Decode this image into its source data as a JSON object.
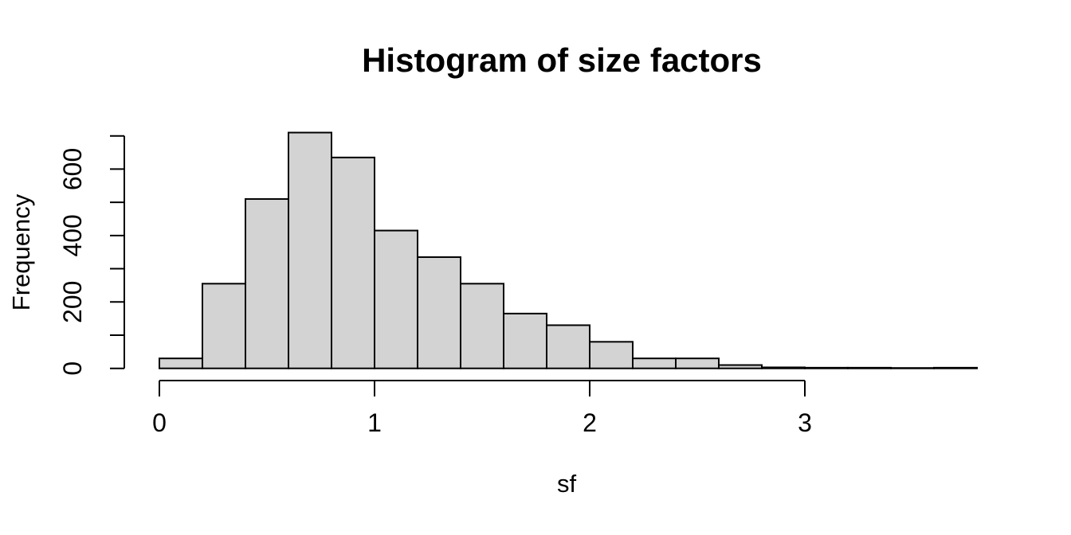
{
  "page": {
    "background": "#ffffff"
  },
  "chart_data": {
    "type": "bar",
    "subtype": "histogram",
    "title": "Histogram of size factors",
    "xlabel": "sf",
    "ylabel": "Frequency",
    "bins": {
      "start": 0.0,
      "width": 0.2
    },
    "frequencies": [
      30,
      255,
      510,
      710,
      635,
      415,
      335,
      255,
      165,
      130,
      80,
      30,
      30,
      10,
      3,
      2,
      2,
      1,
      2
    ],
    "x_ticks": [
      0,
      1,
      2,
      3
    ],
    "y_ticks": [
      0,
      100,
      200,
      300,
      400,
      500,
      600,
      700
    ],
    "y_tick_labels": [
      0,
      200,
      400,
      600
    ],
    "xlim": [
      0,
      3.8
    ],
    "ylim": [
      0,
      700
    ],
    "grid": false,
    "legend": "none",
    "bar_fill": "#d3d3d3",
    "bar_border": "#000000",
    "axis_color": "#000000",
    "text_color": "#000000"
  }
}
